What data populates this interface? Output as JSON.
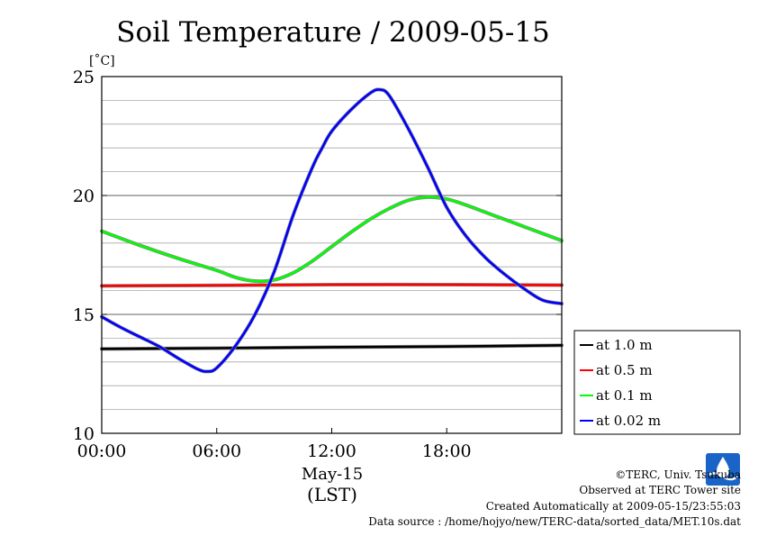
{
  "chart_data": {
    "type": "line",
    "title": "Soil Temperature / 2009-05-15",
    "ylabel": "[˚C]",
    "xlabel_date": "May-15",
    "xlabel_tz": "(LST)",
    "ylim": [
      10,
      25
    ],
    "xlim_hours": [
      0,
      24
    ],
    "y_ticks": [
      {
        "value": 10,
        "label": "10"
      },
      {
        "value": 15,
        "label": "15"
      },
      {
        "value": 20,
        "label": "20"
      },
      {
        "value": 25,
        "label": "25"
      }
    ],
    "y_minor_step": 1,
    "x_ticks": [
      {
        "hour": 0,
        "label": "00:00"
      },
      {
        "hour": 6,
        "label": "06:00"
      },
      {
        "hour": 12,
        "label": "12:00"
      },
      {
        "hour": 18,
        "label": "18:00"
      }
    ],
    "grid": true,
    "legend_position": "right-bottom",
    "series": [
      {
        "name": "at 1.0 m",
        "color": "#000000",
        "x": [
          0,
          6,
          12,
          18,
          24
        ],
        "y": [
          13.55,
          13.58,
          13.62,
          13.65,
          13.7
        ]
      },
      {
        "name": "at 0.5 m",
        "color": "#ff0000",
        "x": [
          0,
          6,
          12,
          18,
          24
        ],
        "y": [
          16.2,
          16.22,
          16.25,
          16.25,
          16.23
        ]
      },
      {
        "name": "at 0.1 m",
        "color": "#00ff00",
        "x": [
          0,
          2,
          4,
          6,
          7,
          8,
          9,
          10,
          11,
          12,
          13,
          14,
          15,
          16,
          17,
          18,
          19,
          20,
          21,
          22,
          23,
          24
        ],
        "y": [
          18.5,
          17.9,
          17.35,
          16.85,
          16.55,
          16.4,
          16.45,
          16.75,
          17.25,
          17.85,
          18.45,
          19.0,
          19.45,
          19.8,
          19.93,
          19.85,
          19.6,
          19.3,
          19.0,
          18.7,
          18.4,
          18.1
        ]
      },
      {
        "name": "at 0.02 m",
        "color": "#0000ff",
        "x": [
          0,
          1,
          2,
          3,
          4,
          5,
          5.5,
          6,
          7,
          8,
          9,
          10,
          11,
          11.5,
          12,
          13,
          14,
          14.5,
          15,
          16,
          17,
          18,
          19,
          20,
          21,
          22,
          23,
          24
        ],
        "y": [
          14.9,
          14.45,
          14.05,
          13.65,
          13.15,
          12.7,
          12.6,
          12.75,
          13.7,
          15.0,
          16.8,
          19.2,
          21.2,
          22.0,
          22.7,
          23.6,
          24.3,
          24.45,
          24.2,
          22.8,
          21.2,
          19.5,
          18.3,
          17.4,
          16.7,
          16.1,
          15.6,
          15.45
        ]
      }
    ]
  },
  "footer": {
    "copyright": "©TERC, Univ. Tsukuba",
    "observed": "Observed at TERC Tower site",
    "created": "Created Automatically at 2009-05-15/23:55:03",
    "source": "Data source : /home/hojyo/new/TERC-data/sorted_data/MET.10s.dat"
  },
  "logo": {
    "label": "TERC",
    "color": "#1a64c8"
  }
}
